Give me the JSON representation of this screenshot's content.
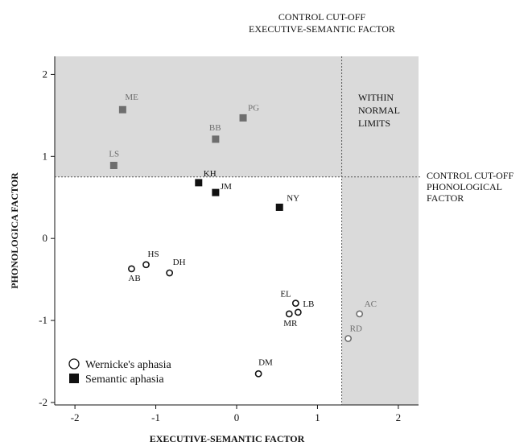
{
  "chart_data": {
    "type": "scatter",
    "xlabel": "EXECUTIVE-SEMANTIC FACTOR",
    "ylabel": "PHONOLOGICA FACTOR",
    "xlim": [
      -2.25,
      2.25
    ],
    "ylim": [
      -2.03,
      2.22
    ],
    "xticks": [
      -2,
      -1,
      0,
      1,
      2
    ],
    "yticks": [
      -2,
      -1,
      0,
      1,
      2
    ],
    "grid": false,
    "legend_position": "bottom-left",
    "cutoffs": {
      "executive_semantic": 1.3,
      "phonological": 0.75
    },
    "annotations": {
      "top_cutoff_line1": "CONTROL CUT-OFF",
      "top_cutoff_line2": "EXECUTIVE-SEMANTIC FACTOR",
      "right_cutoff_line1": "CONTROL CUT-OFF",
      "right_cutoff_line2": "PHONOLOGICAL",
      "right_cutoff_line3": "FACTOR",
      "wnl_line1": "WITHIN",
      "wnl_line2": "NORMAL",
      "wnl_line3": "LIMITS"
    },
    "series": [
      {
        "name": "Wernicke's aphasia",
        "marker": "open-circle",
        "points": [
          {
            "label": "AB",
            "x": -1.3,
            "y": -0.37
          },
          {
            "label": "HS",
            "x": -1.12,
            "y": -0.32
          },
          {
            "label": "DH",
            "x": -0.83,
            "y": -0.42
          },
          {
            "label": "EL",
            "x": 0.73,
            "y": -0.79
          },
          {
            "label": "LB",
            "x": 0.76,
            "y": -0.9
          },
          {
            "label": "MR",
            "x": 0.65,
            "y": -0.92
          },
          {
            "label": "DM",
            "x": 0.27,
            "y": -1.65
          },
          {
            "label": "AC",
            "x": 1.52,
            "y": -0.92
          },
          {
            "label": "RD",
            "x": 1.38,
            "y": -1.22
          }
        ]
      },
      {
        "name": "Semantic aphasia",
        "marker": "filled-square",
        "points": [
          {
            "label": "ME",
            "x": -1.41,
            "y": 1.57
          },
          {
            "label": "LS",
            "x": -1.52,
            "y": 0.89
          },
          {
            "label": "BB",
            "x": -0.26,
            "y": 1.21
          },
          {
            "label": "PG",
            "x": 0.08,
            "y": 1.47
          },
          {
            "label": "KH",
            "x": -0.47,
            "y": 0.68
          },
          {
            "label": "JM",
            "x": -0.26,
            "y": 0.56
          },
          {
            "label": "NY",
            "x": 0.53,
            "y": 0.38
          }
        ]
      }
    ]
  },
  "colors": {
    "shade": "#dadada",
    "inside_marker": "#111111",
    "outside_marker": "#6e6e6e",
    "cutoff_line": "#555555"
  }
}
